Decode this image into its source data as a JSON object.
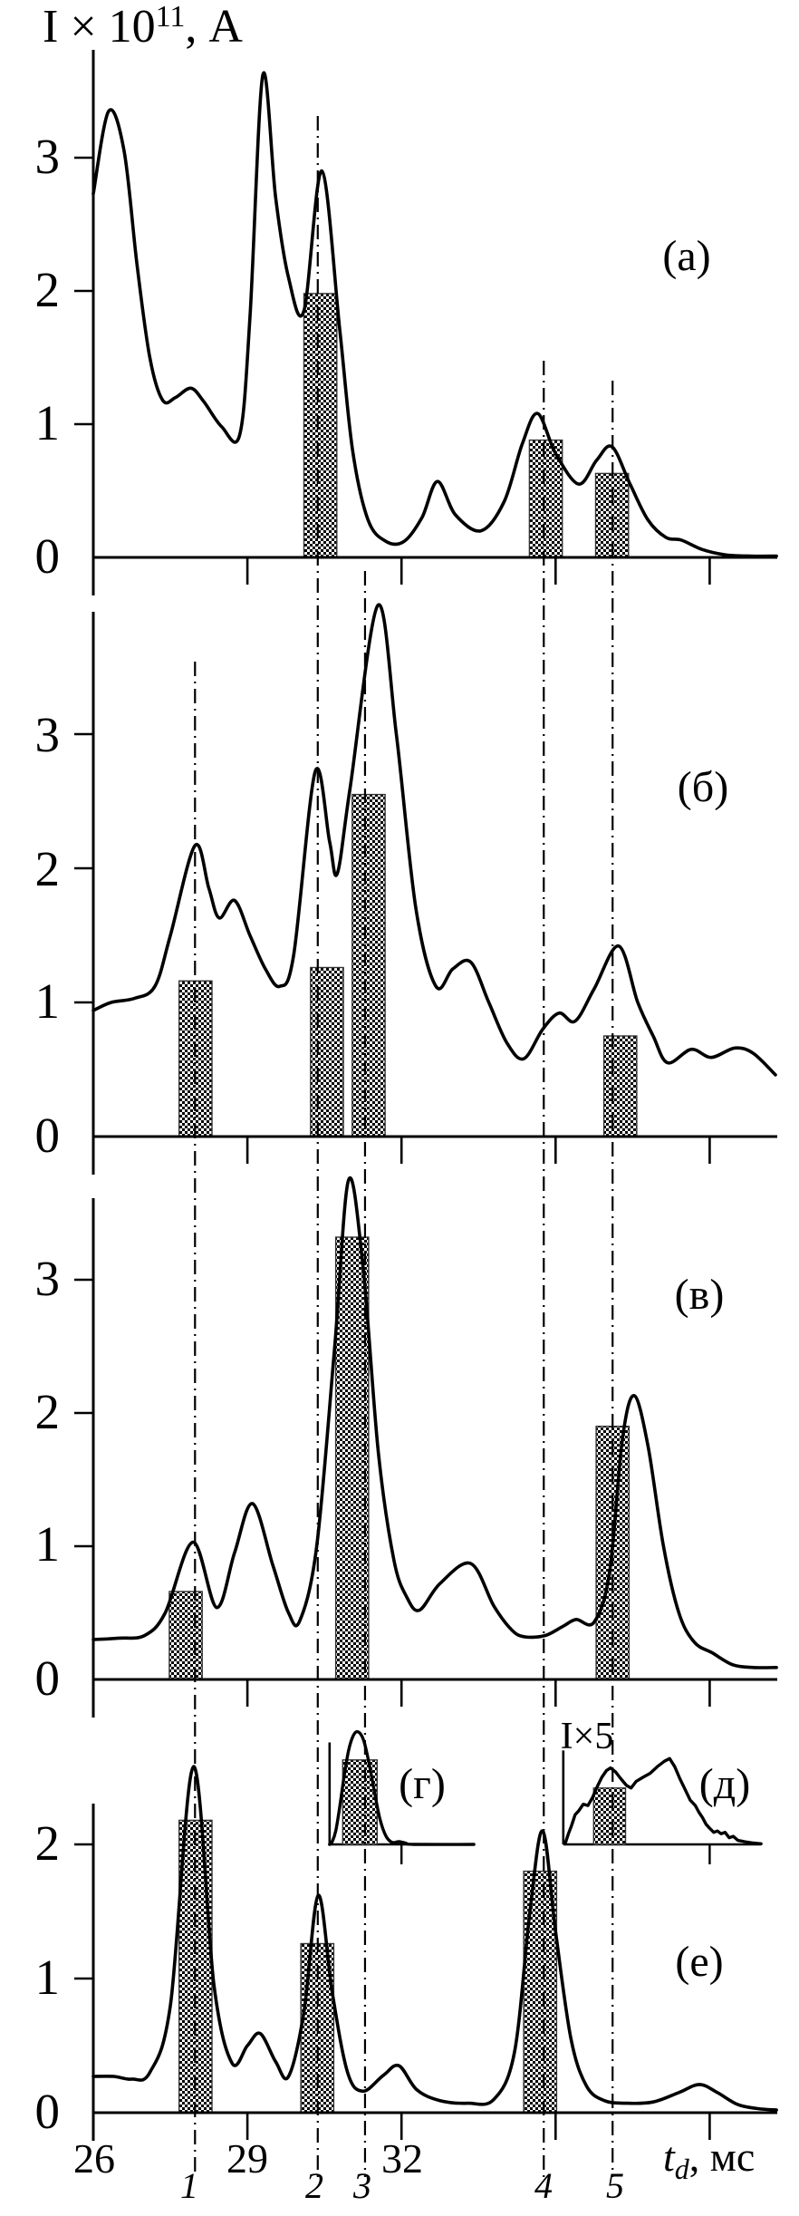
{
  "figure": {
    "background": "#ffffff",
    "ink": "#000000",
    "y_axis_title": {
      "base": "I × 10",
      "superscript": "11",
      "suffix": ", А"
    },
    "x_axis_title": {
      "variable": "t",
      "subscript": "d",
      "suffix": ", мс"
    }
  },
  "chart_data": {
    "type": "line",
    "title": "",
    "xlabel": "t_d, мс",
    "ylabel": "I × 10^11, А",
    "x_axis": {
      "range": [
        26,
        39.35
      ],
      "ticks": [
        26,
        29,
        32,
        35,
        38
      ],
      "labeled_ticks": [
        "26",
        "29",
        "32"
      ],
      "unit": "мс"
    },
    "guide_lines": [
      {
        "label": "1",
        "t": 27.98
      },
      {
        "label": "2",
        "t": 30.37
      },
      {
        "label": "3",
        "t": 31.29
      },
      {
        "label": "4",
        "t": 34.77
      },
      {
        "label": "5",
        "t": 36.11
      }
    ],
    "bar_width_ms": 0.64,
    "panels": [
      {
        "id": "a",
        "label": "(а)",
        "y_ticks": [
          0,
          1,
          2,
          3
        ],
        "ylim": [
          0,
          3.8
        ],
        "bars": [
          {
            "t": 30.42,
            "height": 1.98
          },
          {
            "t": 34.81,
            "height": 0.88
          },
          {
            "t": 36.1,
            "height": 0.63
          }
        ],
        "curve": [
          [
            26,
            2.73
          ],
          [
            26.3,
            3.35
          ],
          [
            26.6,
            3.05
          ],
          [
            26.85,
            2.2
          ],
          [
            27.1,
            1.5
          ],
          [
            27.35,
            1.18
          ],
          [
            27.6,
            1.2
          ],
          [
            27.9,
            1.27
          ],
          [
            28.15,
            1.17
          ],
          [
            28.5,
            0.98
          ],
          [
            28.85,
            0.92
          ],
          [
            29.05,
            1.8
          ],
          [
            29.3,
            3.62
          ],
          [
            29.55,
            2.7
          ],
          [
            29.8,
            2.1
          ],
          [
            30.1,
            1.85
          ],
          [
            30.45,
            2.9
          ],
          [
            30.8,
            1.7
          ],
          [
            31.05,
            0.8
          ],
          [
            31.35,
            0.28
          ],
          [
            31.7,
            0.12
          ],
          [
            32.05,
            0.12
          ],
          [
            32.4,
            0.3
          ],
          [
            32.7,
            0.57
          ],
          [
            33.05,
            0.32
          ],
          [
            33.55,
            0.2
          ],
          [
            34.0,
            0.42
          ],
          [
            34.35,
            0.85
          ],
          [
            34.65,
            1.08
          ],
          [
            35.0,
            0.78
          ],
          [
            35.45,
            0.55
          ],
          [
            35.8,
            0.73
          ],
          [
            36.1,
            0.83
          ],
          [
            36.45,
            0.55
          ],
          [
            36.8,
            0.28
          ],
          [
            37.15,
            0.15
          ],
          [
            37.45,
            0.13
          ],
          [
            37.85,
            0.06
          ],
          [
            38.3,
            0.02
          ],
          [
            38.8,
            0.01
          ],
          [
            39.3,
            0.01
          ]
        ]
      },
      {
        "id": "b",
        "label": "(б)",
        "y_ticks": [
          0,
          1,
          2,
          3
        ],
        "ylim": [
          0,
          3.95
        ],
        "bars": [
          {
            "t": 27.99,
            "height": 1.16
          },
          {
            "t": 30.55,
            "height": 1.26
          },
          {
            "t": 31.36,
            "height": 2.55
          },
          {
            "t": 36.26,
            "height": 0.75
          }
        ],
        "curve": [
          [
            26,
            0.94
          ],
          [
            26.35,
            1.0
          ],
          [
            26.8,
            1.03
          ],
          [
            27.2,
            1.12
          ],
          [
            27.5,
            1.5
          ],
          [
            27.98,
            2.17
          ],
          [
            28.25,
            1.85
          ],
          [
            28.45,
            1.63
          ],
          [
            28.75,
            1.76
          ],
          [
            29.05,
            1.5
          ],
          [
            29.35,
            1.25
          ],
          [
            29.63,
            1.12
          ],
          [
            29.9,
            1.35
          ],
          [
            30.32,
            2.72
          ],
          [
            30.6,
            2.2
          ],
          [
            30.75,
            1.96
          ],
          [
            31.0,
            2.6
          ],
          [
            31.54,
            3.96
          ],
          [
            31.9,
            3.0
          ],
          [
            32.28,
            1.7
          ],
          [
            32.67,
            1.12
          ],
          [
            33.0,
            1.25
          ],
          [
            33.35,
            1.3
          ],
          [
            33.7,
            1.0
          ],
          [
            34.05,
            0.7
          ],
          [
            34.38,
            0.58
          ],
          [
            34.75,
            0.8
          ],
          [
            35.07,
            0.92
          ],
          [
            35.38,
            0.86
          ],
          [
            35.75,
            1.1
          ],
          [
            36.23,
            1.42
          ],
          [
            36.6,
            1.0
          ],
          [
            36.9,
            0.75
          ],
          [
            37.18,
            0.55
          ],
          [
            37.64,
            0.65
          ],
          [
            38.03,
            0.59
          ],
          [
            38.49,
            0.66
          ],
          [
            38.85,
            0.62
          ],
          [
            39.28,
            0.46
          ]
        ]
      },
      {
        "id": "v",
        "label": "(в)",
        "y_ticks": [
          0,
          1,
          2,
          3
        ],
        "ylim": [
          0,
          3.8
        ],
        "bars": [
          {
            "t": 27.8,
            "height": 0.66
          },
          {
            "t": 31.04,
            "height": 3.32
          },
          {
            "t": 36.11,
            "height": 1.9
          }
        ],
        "curve": [
          [
            26,
            0.3
          ],
          [
            26.5,
            0.31
          ],
          [
            27.0,
            0.33
          ],
          [
            27.4,
            0.5
          ],
          [
            27.94,
            1.03
          ],
          [
            28.4,
            0.54
          ],
          [
            28.75,
            0.95
          ],
          [
            29.1,
            1.32
          ],
          [
            29.5,
            0.85
          ],
          [
            29.8,
            0.5
          ],
          [
            30.02,
            0.44
          ],
          [
            30.35,
            1.0
          ],
          [
            30.7,
            2.5
          ],
          [
            30.97,
            3.75
          ],
          [
            31.25,
            3.1
          ],
          [
            31.55,
            1.7
          ],
          [
            31.85,
            0.9
          ],
          [
            32.1,
            0.62
          ],
          [
            32.35,
            0.52
          ],
          [
            32.75,
            0.72
          ],
          [
            33.35,
            0.87
          ],
          [
            33.8,
            0.55
          ],
          [
            34.15,
            0.37
          ],
          [
            34.4,
            0.32
          ],
          [
            34.8,
            0.33
          ],
          [
            35.15,
            0.4
          ],
          [
            35.4,
            0.45
          ],
          [
            35.75,
            0.43
          ],
          [
            36.05,
            0.8
          ],
          [
            36.3,
            1.8
          ],
          [
            36.53,
            2.13
          ],
          [
            36.8,
            1.75
          ],
          [
            37.1,
            1.0
          ],
          [
            37.4,
            0.5
          ],
          [
            37.7,
            0.28
          ],
          [
            38.05,
            0.2
          ],
          [
            38.45,
            0.11
          ],
          [
            38.85,
            0.09
          ],
          [
            39.3,
            0.09
          ]
        ]
      },
      {
        "id": "e",
        "label": "(е)",
        "y_ticks": [
          0,
          1,
          2
        ],
        "ylim": [
          0,
          2.7
        ],
        "bars": [
          {
            "t": 27.99,
            "height": 2.18
          },
          {
            "t": 30.36,
            "height": 1.26
          },
          {
            "t": 34.7,
            "height": 1.8
          }
        ],
        "curve": [
          [
            26,
            0.27
          ],
          [
            26.4,
            0.27
          ],
          [
            26.75,
            0.25
          ],
          [
            27.1,
            0.3
          ],
          [
            27.5,
            0.8
          ],
          [
            27.95,
            2.58
          ],
          [
            28.35,
            0.95
          ],
          [
            28.7,
            0.37
          ],
          [
            29.0,
            0.5
          ],
          [
            29.25,
            0.59
          ],
          [
            29.55,
            0.38
          ],
          [
            29.8,
            0.27
          ],
          [
            30.1,
            0.75
          ],
          [
            30.38,
            1.62
          ],
          [
            30.65,
            0.9
          ],
          [
            30.95,
            0.3
          ],
          [
            31.25,
            0.16
          ],
          [
            31.65,
            0.28
          ],
          [
            31.95,
            0.35
          ],
          [
            32.3,
            0.17
          ],
          [
            32.75,
            0.09
          ],
          [
            33.3,
            0.07
          ],
          [
            33.8,
            0.1
          ],
          [
            34.2,
            0.45
          ],
          [
            34.5,
            1.5
          ],
          [
            34.75,
            2.1
          ],
          [
            35.0,
            1.35
          ],
          [
            35.3,
            0.55
          ],
          [
            35.6,
            0.2
          ],
          [
            35.95,
            0.09
          ],
          [
            36.4,
            0.07
          ],
          [
            36.9,
            0.08
          ],
          [
            37.4,
            0.15
          ],
          [
            37.8,
            0.21
          ],
          [
            38.15,
            0.15
          ],
          [
            38.55,
            0.06
          ],
          [
            38.95,
            0.03
          ],
          [
            39.3,
            0.02
          ]
        ]
      }
    ],
    "insets": [
      {
        "id": "g",
        "label": "(г)",
        "scale_note": "",
        "base_level": 2.0,
        "t_range": [
          30.6,
          33.41
        ],
        "axis_height": 0.76,
        "tick_t": 32,
        "bar": {
          "t": 31.19,
          "height": 0.63,
          "width_ms": 0.67
        },
        "smooth": true,
        "curve": [
          [
            30.6,
            0
          ],
          [
            30.65,
            0.02
          ],
          [
            30.72,
            0.1
          ],
          [
            30.79,
            0.26
          ],
          [
            30.88,
            0.5
          ],
          [
            30.97,
            0.7
          ],
          [
            31.06,
            0.81
          ],
          [
            31.15,
            0.84
          ],
          [
            31.26,
            0.78
          ],
          [
            31.36,
            0.62
          ],
          [
            31.47,
            0.4
          ],
          [
            31.58,
            0.19
          ],
          [
            31.7,
            0.06
          ],
          [
            31.82,
            0.015
          ],
          [
            31.95,
            0.02
          ],
          [
            32.08,
            0.01
          ],
          [
            32.25,
            0.0
          ],
          [
            33.41,
            0.0
          ]
        ]
      },
      {
        "id": "d",
        "label": "(д)",
        "scale_note": "I×5",
        "base_level": 2.0,
        "t_range": [
          35.15,
          39.0
        ],
        "axis_height": 0.7,
        "tick_t": 38,
        "bar": {
          "t": 36.05,
          "height": 0.42,
          "width_ms": 0.62
        },
        "smooth": false,
        "curve": [
          [
            35.19,
            0.01
          ],
          [
            35.25,
            0.08
          ],
          [
            35.31,
            0.14
          ],
          [
            35.38,
            0.22
          ],
          [
            35.45,
            0.25
          ],
          [
            35.54,
            0.3
          ],
          [
            35.63,
            0.29
          ],
          [
            35.72,
            0.35
          ],
          [
            35.81,
            0.43
          ],
          [
            35.9,
            0.5
          ],
          [
            35.99,
            0.55
          ],
          [
            36.07,
            0.57
          ],
          [
            36.17,
            0.54
          ],
          [
            36.27,
            0.49
          ],
          [
            36.38,
            0.44
          ],
          [
            36.47,
            0.42
          ],
          [
            36.57,
            0.47
          ],
          [
            36.7,
            0.5
          ],
          [
            36.84,
            0.53
          ],
          [
            36.98,
            0.58
          ],
          [
            37.12,
            0.62
          ],
          [
            37.22,
            0.64
          ],
          [
            37.32,
            0.58
          ],
          [
            37.42,
            0.49
          ],
          [
            37.52,
            0.41
          ],
          [
            37.62,
            0.33
          ],
          [
            37.72,
            0.29
          ],
          [
            37.79,
            0.24
          ],
          [
            37.86,
            0.2
          ],
          [
            37.93,
            0.15
          ],
          [
            38.0,
            0.12
          ],
          [
            38.08,
            0.09
          ],
          [
            38.15,
            0.1
          ],
          [
            38.22,
            0.08
          ],
          [
            38.3,
            0.09
          ],
          [
            38.38,
            0.05
          ],
          [
            38.46,
            0.06
          ],
          [
            38.55,
            0.03
          ],
          [
            38.68,
            0.02
          ],
          [
            38.85,
            0.01
          ],
          [
            39.0,
            0.005
          ]
        ]
      }
    ]
  }
}
